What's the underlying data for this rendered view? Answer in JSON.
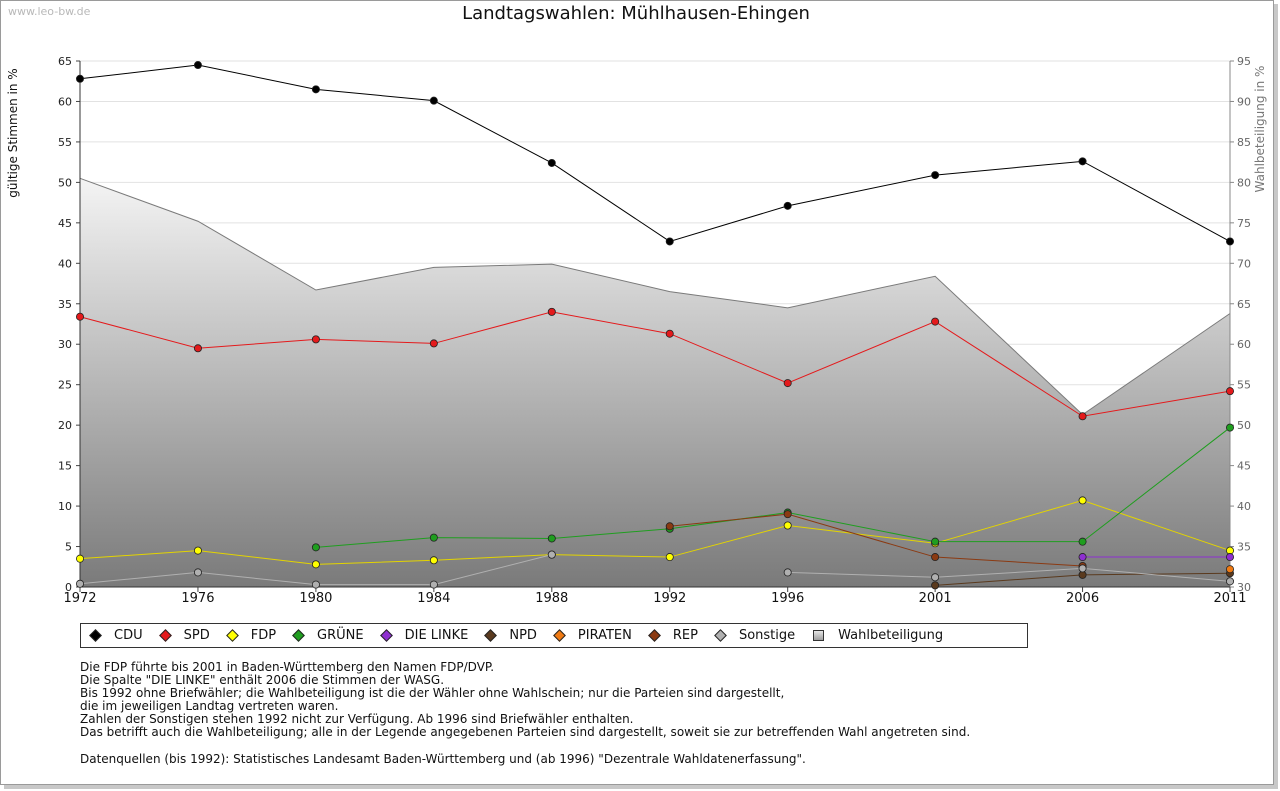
{
  "watermark": "www.leo-bw.de",
  "chart_data": {
    "type": "line",
    "title": "Landtagswahlen: Mühlhausen-Ehingen",
    "ylabel": "gültige Stimmen in %",
    "ylabel_right": "Wahlbeteiligung in %",
    "x": [
      1972,
      1976,
      1980,
      1984,
      1988,
      1992,
      1996,
      2001,
      2006,
      2011
    ],
    "ylim": [
      0,
      65
    ],
    "ylim_right": [
      30,
      95
    ],
    "yticks": [
      0,
      5,
      10,
      15,
      20,
      25,
      30,
      35,
      40,
      45,
      50,
      55,
      60,
      65
    ],
    "yticks_right": [
      30,
      35,
      40,
      45,
      50,
      55,
      60,
      65,
      70,
      75,
      80,
      85,
      90,
      95
    ],
    "grid": true,
    "legend_position": "bottom",
    "turnout": {
      "name": "Wahlbeteiligung",
      "values": [
        80.5,
        75.2,
        66.7,
        69.5,
        69.9,
        66.5,
        64.5,
        68.4,
        51.3,
        63.8
      ]
    },
    "series": [
      {
        "name": "CDU",
        "color": "#000000",
        "values": [
          62.8,
          64.5,
          61.5,
          60.1,
          52.4,
          42.7,
          47.1,
          50.9,
          52.6,
          42.7
        ]
      },
      {
        "name": "SPD",
        "color": "#e41a1c",
        "values": [
          33.4,
          29.5,
          30.6,
          30.1,
          34.0,
          31.3,
          25.2,
          32.8,
          21.1,
          24.2
        ]
      },
      {
        "name": "FDP",
        "color": "#e3d400",
        "values": [
          3.5,
          4.5,
          2.8,
          3.3,
          4.0,
          3.7,
          7.6,
          5.4,
          10.7,
          4.5
        ]
      },
      {
        "name": "GRÜNE",
        "color": "#1f9e1f",
        "values": [
          null,
          null,
          4.9,
          6.1,
          6.0,
          7.2,
          9.2,
          5.6,
          5.6,
          19.7
        ]
      },
      {
        "name": "DIE LINKE",
        "color": "#8e2fd0",
        "values": [
          null,
          null,
          null,
          null,
          null,
          null,
          null,
          null,
          3.7,
          3.7
        ]
      },
      {
        "name": "NPD",
        "color": "#5a3a1e",
        "values": [
          null,
          null,
          null,
          null,
          null,
          null,
          null,
          0.2,
          1.5,
          1.7
        ]
      },
      {
        "name": "PIRATEN",
        "color": "#f07a12",
        "values": [
          null,
          null,
          null,
          null,
          null,
          null,
          null,
          null,
          null,
          2.2
        ]
      },
      {
        "name": "REP",
        "color": "#8b3a12",
        "values": [
          null,
          null,
          null,
          null,
          null,
          7.5,
          9.0,
          3.7,
          2.6,
          null
        ]
      },
      {
        "name": "Sonstige",
        "color": "#b0b0b0",
        "values": [
          0.4,
          1.8,
          0.3,
          0.3,
          4.0,
          null,
          1.8,
          1.2,
          2.3,
          0.7
        ]
      }
    ]
  },
  "legend": [
    {
      "label": "CDU",
      "color": "#000000"
    },
    {
      "label": "SPD",
      "color": "#e41a1c"
    },
    {
      "label": "FDP",
      "color": "#ffff00"
    },
    {
      "label": "GRÜNE",
      "color": "#1f9e1f"
    },
    {
      "label": "DIE LINKE",
      "color": "#8e2fd0"
    },
    {
      "label": "NPD",
      "color": "#5a3a1e"
    },
    {
      "label": "PIRATEN",
      "color": "#f07a12"
    },
    {
      "label": "REP",
      "color": "#8b3a12"
    },
    {
      "label": "Sonstige",
      "color": "#b0b0b0"
    },
    {
      "label": "Wahlbeteiligung",
      "color": "#cccccc"
    }
  ],
  "notes": [
    "Die FDP führte bis 2001 in Baden-Württemberg den Namen FDP/DVP.",
    "Die Spalte \"DIE LINKE\" enthält 2006 die Stimmen der WASG.",
    "Bis 1992 ohne Briefwähler; die Wahlbeteiligung ist die der Wähler ohne Wahlschein; nur die Parteien sind dargestellt,",
    "die im jeweiligen Landtag vertreten waren.",
    "Zahlen der Sonstigen stehen 1992 nicht zur Verfügung. Ab 1996 sind Briefwähler enthalten.",
    "Das betrifft auch die Wahlbeteiligung; alle in der Legende angegebenen Parteien sind dargestellt, soweit sie zur betreffenden Wahl angetreten sind."
  ],
  "source": "Datenquellen (bis 1992): Statistisches Landesamt Baden-Württemberg und (ab 1996) \"Dezentrale Wahldatenerfassung\"."
}
